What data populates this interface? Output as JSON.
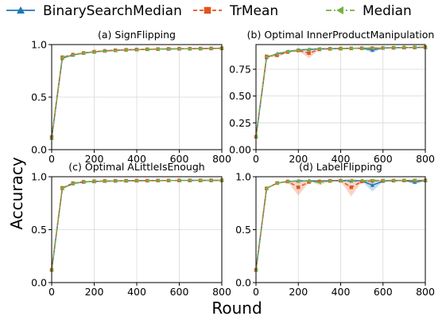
{
  "figure": {
    "ylabel": "Accuracy",
    "xlabel": "Round",
    "legend": {
      "placement": "top",
      "entries": [
        {
          "name": "BinarySearchMedian",
          "color": "#1f77b4",
          "marker": "triangle-up",
          "dash": "solid"
        },
        {
          "name": "TrMean",
          "color": "#e2531f",
          "marker": "square",
          "dash": "dashed"
        },
        {
          "name": "Median",
          "color": "#76b041",
          "marker": "triangle-left",
          "dash": "dashdot"
        }
      ]
    }
  },
  "chart_data": [
    {
      "type": "line",
      "title": "(a) SignFlipping",
      "xlim": [
        0,
        800
      ],
      "ylim": [
        0,
        1.0
      ],
      "xticks": [
        0,
        200,
        400,
        600,
        800
      ],
      "yticks": [
        0.0,
        0.5,
        1.0
      ],
      "ytick_labels": [
        "0.0",
        "0.5",
        "1.0"
      ],
      "grid": true,
      "x": [
        0,
        50,
        100,
        150,
        200,
        250,
        300,
        350,
        400,
        450,
        500,
        550,
        600,
        650,
        700,
        750,
        800
      ],
      "series": [
        {
          "name": "BinarySearchMedian",
          "values": [
            0.11,
            0.87,
            0.9,
            0.92,
            0.93,
            0.94,
            0.945,
            0.95,
            0.952,
            0.955,
            0.957,
            0.958,
            0.96,
            0.96,
            0.962,
            0.963,
            0.965
          ]
        },
        {
          "name": "TrMean",
          "values": [
            0.12,
            0.88,
            0.905,
            0.92,
            0.932,
            0.94,
            0.946,
            0.95,
            0.953,
            0.955,
            0.957,
            0.959,
            0.96,
            0.961,
            0.962,
            0.963,
            0.965
          ]
        },
        {
          "name": "Median",
          "values": [
            0.11,
            0.875,
            0.9,
            0.918,
            0.93,
            0.938,
            0.944,
            0.949,
            0.952,
            0.954,
            0.956,
            0.958,
            0.959,
            0.96,
            0.962,
            0.963,
            0.964
          ]
        }
      ]
    },
    {
      "type": "line",
      "title": "(b) Optimal InnerProductManipulation",
      "xlim": [
        0,
        800
      ],
      "ylim": [
        0,
        0.98
      ],
      "xticks": [
        0,
        200,
        400,
        600,
        800
      ],
      "yticks": [
        0.0,
        0.25,
        0.5,
        0.75
      ],
      "ytick_labels": [
        "0.00",
        "0.25",
        "0.50",
        "0.75"
      ],
      "grid": true,
      "x": [
        0,
        50,
        100,
        150,
        200,
        250,
        300,
        350,
        400,
        450,
        500,
        550,
        600,
        650,
        700,
        750,
        800
      ],
      "series": [
        {
          "name": "BinarySearchMedian",
          "values": [
            0.12,
            0.86,
            0.895,
            0.915,
            0.93,
            0.935,
            0.94,
            0.942,
            0.944,
            0.945,
            0.946,
            0.93,
            0.948,
            0.95,
            0.952,
            0.953,
            0.955
          ]
        },
        {
          "name": "TrMean",
          "values": [
            0.12,
            0.87,
            0.88,
            0.91,
            0.925,
            0.9,
            0.935,
            0.94,
            0.942,
            0.944,
            0.946,
            0.947,
            0.948,
            0.95,
            0.952,
            0.953,
            0.955
          ]
        },
        {
          "name": "Median",
          "values": [
            0.12,
            0.865,
            0.89,
            0.915,
            0.928,
            0.933,
            0.938,
            0.941,
            0.943,
            0.945,
            0.946,
            0.947,
            0.948,
            0.95,
            0.951,
            0.953,
            0.955
          ]
        }
      ]
    },
    {
      "type": "line",
      "title": "(c) Optimal ALittleIsEnough",
      "xlim": [
        0,
        800
      ],
      "ylim": [
        0,
        1.0
      ],
      "xticks": [
        0,
        200,
        400,
        600,
        800
      ],
      "yticks": [
        0.0,
        0.5,
        1.0
      ],
      "ytick_labels": [
        "0.0",
        "0.5",
        "1.0"
      ],
      "grid": true,
      "x": [
        0,
        50,
        100,
        150,
        200,
        250,
        300,
        350,
        400,
        450,
        500,
        550,
        600,
        650,
        700,
        750,
        800
      ],
      "series": [
        {
          "name": "BinarySearchMedian",
          "values": [
            0.12,
            0.89,
            0.935,
            0.95,
            0.955,
            0.958,
            0.96,
            0.961,
            0.962,
            0.963,
            0.963,
            0.964,
            0.964,
            0.965,
            0.965,
            0.965,
            0.965
          ]
        },
        {
          "name": "TrMean",
          "values": [
            0.12,
            0.895,
            0.94,
            0.952,
            0.957,
            0.96,
            0.961,
            0.962,
            0.963,
            0.963,
            0.964,
            0.964,
            0.965,
            0.965,
            0.965,
            0.966,
            0.966
          ]
        },
        {
          "name": "Median",
          "values": [
            0.12,
            0.89,
            0.937,
            0.951,
            0.956,
            0.959,
            0.96,
            0.961,
            0.962,
            0.963,
            0.963,
            0.964,
            0.964,
            0.965,
            0.965,
            0.965,
            0.965
          ]
        }
      ]
    },
    {
      "type": "line",
      "title": "(d) LabelFlipping",
      "xlim": [
        0,
        800
      ],
      "ylim": [
        0,
        1.0
      ],
      "xticks": [
        0,
        200,
        400,
        600,
        800
      ],
      "yticks": [
        0.0,
        0.5,
        1.0
      ],
      "ytick_labels": [
        "0.0",
        "0.5",
        "1.0"
      ],
      "grid": true,
      "x": [
        0,
        50,
        100,
        150,
        200,
        250,
        300,
        350,
        400,
        450,
        500,
        550,
        600,
        650,
        700,
        750,
        800
      ],
      "series": [
        {
          "name": "BinarySearchMedian",
          "values": [
            0.12,
            0.89,
            0.94,
            0.955,
            0.96,
            0.962,
            0.958,
            0.963,
            0.964,
            0.96,
            0.962,
            0.92,
            0.958,
            0.963,
            0.964,
            0.95,
            0.965
          ]
        },
        {
          "name": "TrMean",
          "values": [
            0.12,
            0.89,
            0.94,
            0.955,
            0.9,
            0.95,
            0.955,
            0.96,
            0.962,
            0.9,
            0.955,
            0.96,
            0.962,
            0.963,
            0.964,
            0.964,
            0.965
          ]
        },
        {
          "name": "Median",
          "values": [
            0.12,
            0.89,
            0.94,
            0.955,
            0.958,
            0.96,
            0.945,
            0.96,
            0.962,
            0.963,
            0.963,
            0.964,
            0.964,
            0.965,
            0.965,
            0.965,
            0.965
          ]
        }
      ]
    }
  ]
}
